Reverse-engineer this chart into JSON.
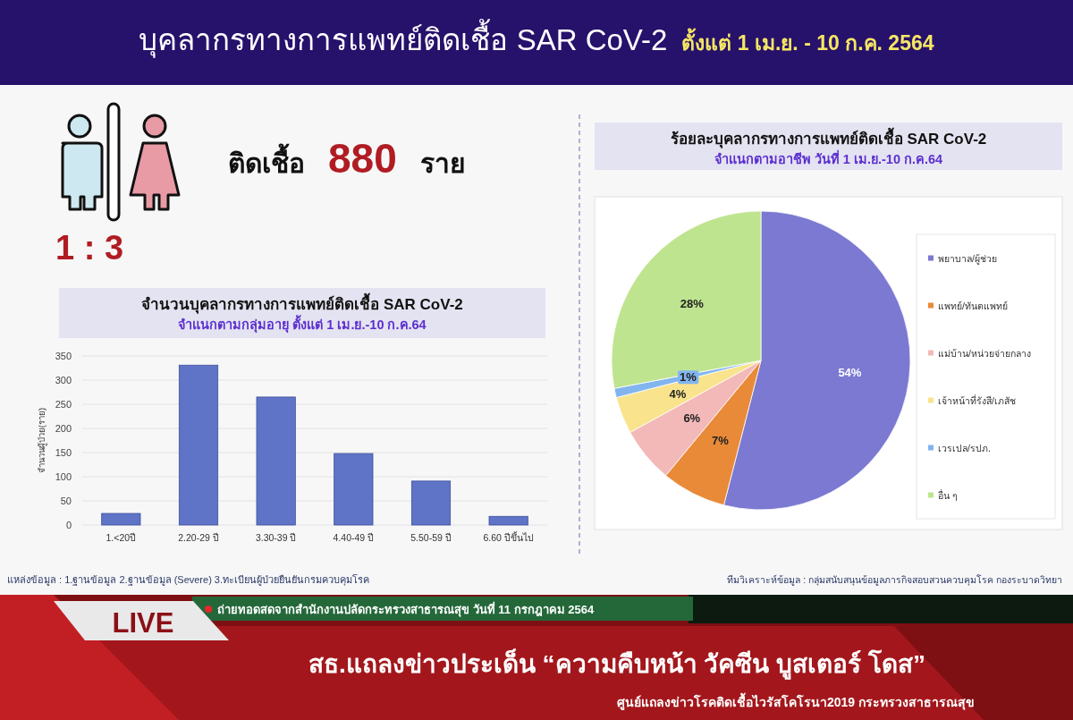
{
  "chart_data": [
    {
      "type": "other",
      "title": "บุคลากรทางการแพทย์ติดเชื้อ SAR CoV-2",
      "subtitle": "ตั้งแต่ 1 เม.ย. - 10 ก.ค. 2564",
      "annotations": [
        "ติดเชื้อ",
        "880",
        "ราย",
        "1 : 3"
      ]
    },
    {
      "type": "bar",
      "title": "จำนวนบุคลากรทางการแพทย์ติดเชื้อ SAR CoV-2",
      "subtitle": "จำแนกตามกลุ่มอายุ ตั้งแต่ 1 เม.ย.-10 ก.ค.64",
      "categories": [
        "1.<20ปี",
        "2.20-29 ปี",
        "3.30-39 ปี",
        "4.40-49 ปี",
        "5.50-59 ปี",
        "6.60 ปีขึ้นไป"
      ],
      "values": [
        24,
        331,
        265,
        148,
        91,
        18
      ],
      "color": "#5f74c7",
      "ylabel": "จำนวนผู้ป่วย(ราย)",
      "ylim": [
        0,
        350
      ],
      "yticks": [
        0,
        50,
        100,
        150,
        200,
        250,
        300,
        350
      ],
      "grid": "y",
      "annotations": [
        "แหล่งข้อมูล : 1.ฐานข้อมูล 2.ฐานข้อมูล (Severe) 3.ทะเบียนผู้ป่วยยืนยันกรมควบคุมโรค"
      ]
    },
    {
      "type": "pie",
      "title": "ร้อยละบุคลากรทางการแพทย์ติดเชื้อ SAR CoV-2",
      "subtitle": "จำแนกตามอาชีพ วันที่ 1 เม.ย.-10 ก.ค.64",
      "categories": [
        "พยาบาล/ผู้ช่วย",
        "แพทย์/ทันตแพทย์",
        "แม่บ้าน/หน่วยจ่ายกลาง",
        "เจ้าหน้าที่รังสี/เภสัช",
        "เวรเปล/รปภ.",
        "อื่น ๆ"
      ],
      "values": [
        54,
        7,
        6,
        4,
        1,
        28
      ],
      "colors": [
        "#7b79d1",
        "#e98a38",
        "#f3b9b8",
        "#f9e38c",
        "#82b5ef",
        "#bfe48f"
      ],
      "value_labels": [
        "54%",
        "7%",
        "6%",
        "4%",
        "1%",
        "28%"
      ],
      "legend": "right",
      "annotations": [
        "ทีมวิเคราะห์ข้อมูล : กลุ่มสนับสนุนข้อมูลภารกิจสอบสวนควบคุมโรค กองระบาดวิทยา"
      ]
    },
    {
      "type": "other",
      "title": "สธ.แถลงข่าวประเด็น “ความคืบหน้า วัคซีน บูสเตอร์ โดส”",
      "annotations": [
        "LIVE",
        "ถ่ายทอดสดจากสำนักงานปลัดกระทรวงสาธารณสุข วันที่ 11 กรกฎาคม 2564",
        "ศูนย์แถลงข่าวโรคติดเชื้อไวรัสโคโรนา2019 กระทรวงสาธารณสุข"
      ]
    }
  ]
}
